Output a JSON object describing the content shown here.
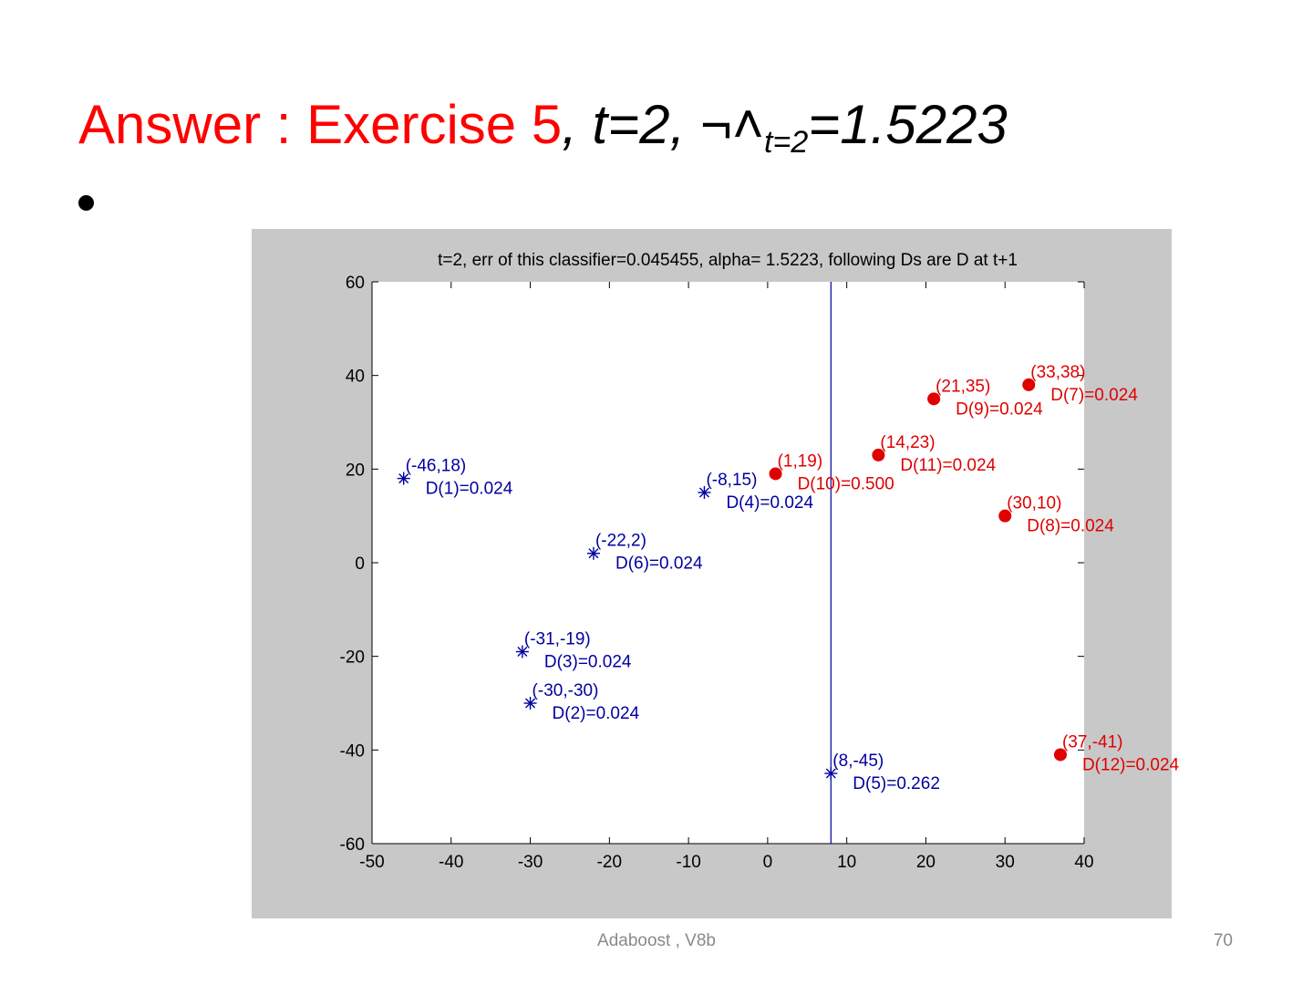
{
  "slide": {
    "title_red": "Answer : Exercise 5",
    "title_black": ", t=2, ",
    "alpha_symbol": "¬˄",
    "alpha_subscript": "t=2",
    "alpha_value": "=1.5223",
    "footer": "Adaboost , V8b",
    "page_number": "70"
  },
  "colors": {
    "title_red": "#ff0000",
    "positive": "#e00000",
    "negative": "#0000a0",
    "figure_bg": "#c8c8c8",
    "axes_bg": "#ffffff"
  },
  "chart_data": {
    "type": "scatter",
    "title": "t=2, err of this classifier=0.045455, alpha=  1.5223, following Ds are D at t+1",
    "xlabel": "",
    "ylabel": "",
    "xlim": [
      -50,
      40
    ],
    "ylim": [
      -60,
      60
    ],
    "xticks": [
      -50,
      -40,
      -30,
      -20,
      -10,
      0,
      10,
      20,
      30,
      40
    ],
    "yticks": [
      60,
      40,
      20,
      0,
      -20,
      -40,
      -60
    ],
    "grid": false,
    "decision_boundary": {
      "x": 8
    },
    "series": [
      {
        "marker": "asterisk",
        "color": "#0000a0",
        "points": [
          {
            "x": -46,
            "y": 18,
            "label": "(-46,18)",
            "dlabel": "D(1)=0.024"
          },
          {
            "x": -8,
            "y": 15,
            "label": "(-8,15)",
            "dlabel": "D(4)=0.024"
          },
          {
            "x": -22,
            "y": 2,
            "label": "(-22,2)",
            "dlabel": "D(6)=0.024"
          },
          {
            "x": -31,
            "y": -19,
            "label": "(-31,-19)",
            "dlabel": "D(3)=0.024"
          },
          {
            "x": -30,
            "y": -30,
            "label": "(-30,-30)",
            "dlabel": "D(2)=0.024"
          },
          {
            "x": 8,
            "y": -45,
            "label": "(8,-45)",
            "dlabel": "D(5)=0.262"
          }
        ]
      },
      {
        "marker": "dot",
        "color": "#e00000",
        "points": [
          {
            "x": 33,
            "y": 38,
            "label": "(33,38)",
            "dlabel": "D(7)=0.024"
          },
          {
            "x": 21,
            "y": 35,
            "label": "(21,35)",
            "dlabel": "D(9)=0.024"
          },
          {
            "x": 14,
            "y": 23,
            "label": "(14,23)",
            "dlabel": "D(11)=0.024"
          },
          {
            "x": 1,
            "y": 19,
            "label": "(1,19)",
            "dlabel": "D(10)=0.500"
          },
          {
            "x": 30,
            "y": 10,
            "label": "(30,10)",
            "dlabel": "D(8)=0.024"
          },
          {
            "x": 37,
            "y": -41,
            "label": "(37,-41)",
            "dlabel": "D(12)=0.024"
          }
        ]
      }
    ]
  }
}
